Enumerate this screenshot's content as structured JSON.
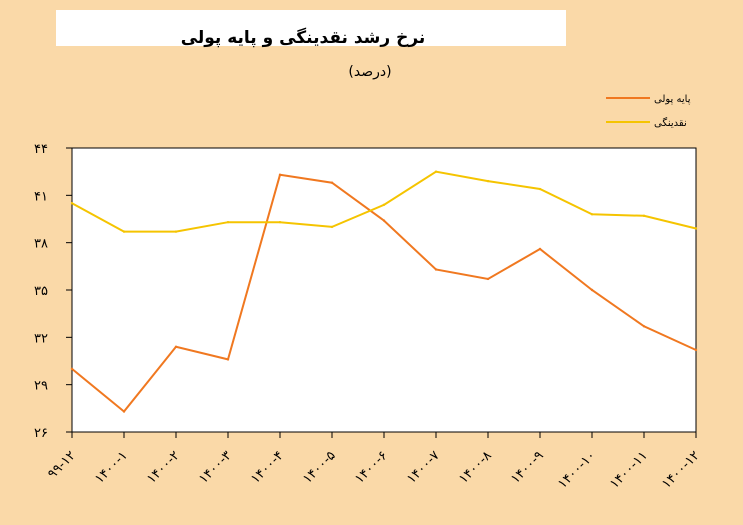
{
  "chart_data": {
    "type": "line",
    "title": "نرخ رشد نقدینگی و پایه پولی",
    "subtitle": "(درصد)",
    "categories": [
      "۹۹-۱۲",
      "۱۴۰۰-۱",
      "۱۴۰۰-۲",
      "۱۴۰۰-۳",
      "۱۴۰۰-۴",
      "۱۴۰۰-۵",
      "۱۴۰۰-۶",
      "۱۴۰۰-۷",
      "۱۴۰۰-۸",
      "۱۴۰۰-۹",
      "۱۴۰۰-۱۰",
      "۱۴۰۰-۱۱",
      "۱۴۰۰-۱۲"
    ],
    "ylim": [
      26,
      44
    ],
    "yticks": [
      26,
      29,
      32,
      35,
      38,
      41,
      44
    ],
    "ytick_labels": [
      "۲۶",
      "۲۹",
      "۳۲",
      "۳۵",
      "۳۸",
      "۴۱",
      "۴۴"
    ],
    "series": [
      {
        "name": "پایه پولی",
        "color": "#f07820",
        "values": [
          30.0,
          27.3,
          31.4,
          30.6,
          42.3,
          41.8,
          39.4,
          36.3,
          35.7,
          37.6,
          35.0,
          32.7,
          31.2
        ]
      },
      {
        "name": "نقدینگی",
        "color": "#f5c400",
        "values": [
          40.5,
          38.7,
          38.7,
          39.3,
          39.3,
          39.0,
          40.4,
          42.5,
          41.9,
          41.4,
          39.8,
          39.7,
          38.9
        ]
      }
    ],
    "legend_position": "top-right",
    "grid": false
  }
}
